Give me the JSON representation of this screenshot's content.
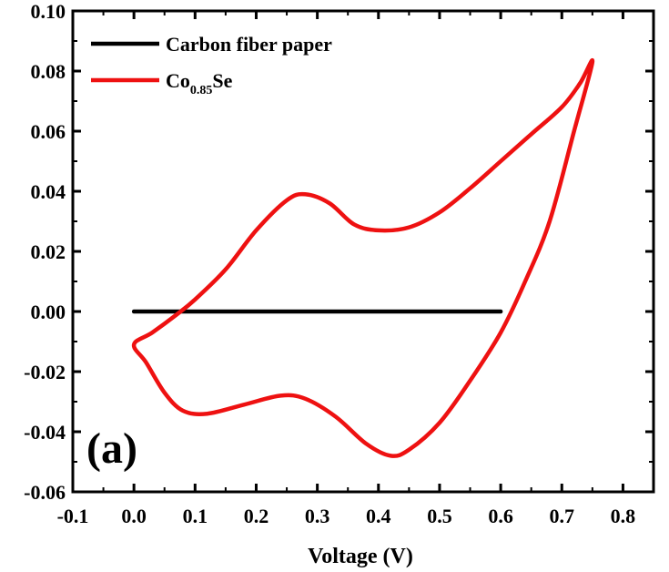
{
  "chart_data": {
    "type": "line",
    "title": "",
    "panel_label": "(a)",
    "xlabel": "Voltage (V)",
    "ylabel": "",
    "xlim": [
      -0.1,
      0.85
    ],
    "ylim": [
      -0.06,
      0.1
    ],
    "xticks": [
      -0.1,
      0.0,
      0.1,
      0.2,
      0.3,
      0.4,
      0.5,
      0.6,
      0.7,
      0.8
    ],
    "xtick_labels": [
      "-0.1",
      "0.0",
      "0.1",
      "0.2",
      "0.3",
      "0.4",
      "0.5",
      "0.6",
      "0.7",
      "0.8"
    ],
    "yticks": [
      -0.06,
      -0.04,
      -0.02,
      0.0,
      0.02,
      0.04,
      0.06,
      0.08,
      0.1
    ],
    "ytick_labels": [
      "-0.06",
      "-0.04",
      "-0.02",
      "0.00",
      "0.02",
      "0.04",
      "0.06",
      "0.08",
      "0.10"
    ],
    "legend": {
      "position": "top-left",
      "entries": [
        {
          "label": "Carbon fiber paper",
          "label_parts": [
            "Carbon fiber paper"
          ],
          "color": "#000000"
        },
        {
          "label": "Co0.85Se",
          "label_parts": [
            "Co",
            "0.85",
            "Se"
          ],
          "color": "#ee1111"
        }
      ]
    },
    "series": [
      {
        "name": "Carbon fiber paper",
        "color": "#000000",
        "x": [
          0.0,
          0.6
        ],
        "y": [
          0.0,
          0.0
        ]
      },
      {
        "name": "Co0.85Se",
        "color": "#ee1111",
        "x": [
          0.0,
          0.03,
          0.07,
          0.1,
          0.15,
          0.2,
          0.25,
          0.28,
          0.32,
          0.36,
          0.4,
          0.45,
          0.5,
          0.55,
          0.6,
          0.65,
          0.7,
          0.73,
          0.75,
          0.72,
          0.68,
          0.64,
          0.6,
          0.55,
          0.5,
          0.45,
          0.42,
          0.38,
          0.33,
          0.28,
          0.24,
          0.18,
          0.12,
          0.08,
          0.05,
          0.02,
          0.0
        ],
        "y": [
          -0.011,
          -0.007,
          -0.001,
          0.004,
          0.014,
          0.027,
          0.037,
          0.039,
          0.036,
          0.029,
          0.027,
          0.028,
          0.033,
          0.041,
          0.05,
          0.059,
          0.068,
          0.076,
          0.083,
          0.06,
          0.03,
          0.01,
          -0.007,
          -0.023,
          -0.037,
          -0.046,
          -0.048,
          -0.044,
          -0.035,
          -0.029,
          -0.028,
          -0.031,
          -0.034,
          -0.033,
          -0.027,
          -0.017,
          -0.011
        ]
      }
    ]
  }
}
